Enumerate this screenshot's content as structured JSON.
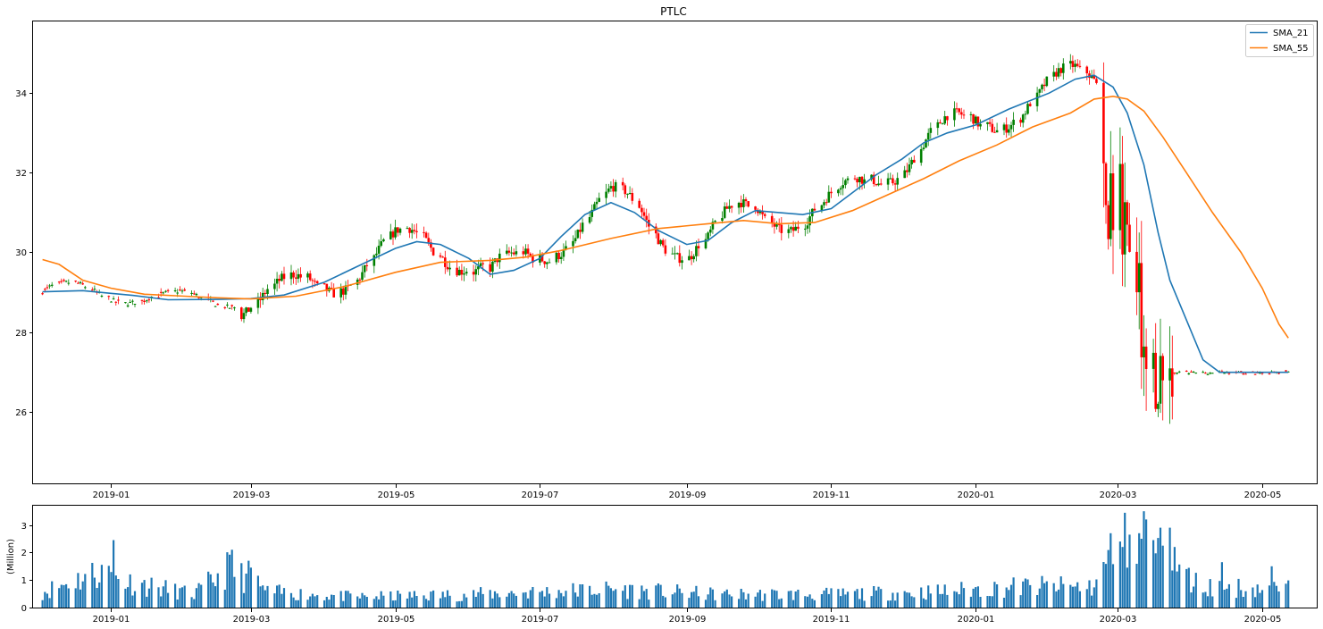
{
  "chart_data": [
    {
      "type": "candlestick",
      "title": "PTLC",
      "xlabel": "",
      "ylabel": "",
      "xlim": [
        "2018-11-29",
        "2020-05-24"
      ],
      "ylim": [
        24.2,
        35.8
      ],
      "x_ticks": [
        "2019-01",
        "2019-03",
        "2019-05",
        "2019-07",
        "2019-09",
        "2019-11",
        "2020-01",
        "2020-03",
        "2020-05"
      ],
      "y_ticks": [
        26,
        28,
        30,
        32,
        34
      ],
      "grid": false,
      "legend": "upper right",
      "up_color": "#008000",
      "down_color": "#ff0000",
      "series": [
        {
          "name": "SMA_21",
          "color": "#1f77b4",
          "points": [
            [
              "2018-12-03",
              29.01
            ],
            [
              "2018-12-20",
              29.04
            ],
            [
              "2019-01-10",
              28.92
            ],
            [
              "2019-01-25",
              28.81
            ],
            [
              "2019-02-15",
              28.82
            ],
            [
              "2019-03-01",
              28.84
            ],
            [
              "2019-03-15",
              28.93
            ],
            [
              "2019-04-01",
              29.25
            ],
            [
              "2019-04-15",
              29.65
            ],
            [
              "2019-05-01",
              30.1
            ],
            [
              "2019-05-10",
              30.27
            ],
            [
              "2019-05-20",
              30.2
            ],
            [
              "2019-06-01",
              29.85
            ],
            [
              "2019-06-10",
              29.45
            ],
            [
              "2019-06-20",
              29.55
            ],
            [
              "2019-07-01",
              29.85
            ],
            [
              "2019-07-10",
              30.4
            ],
            [
              "2019-07-20",
              30.95
            ],
            [
              "2019-07-31",
              31.25
            ],
            [
              "2019-08-10",
              31.0
            ],
            [
              "2019-08-20",
              30.55
            ],
            [
              "2019-09-01",
              30.2
            ],
            [
              "2019-09-10",
              30.3
            ],
            [
              "2019-09-20",
              30.75
            ],
            [
              "2019-09-30",
              31.05
            ],
            [
              "2019-10-10",
              31.0
            ],
            [
              "2019-10-20",
              30.95
            ],
            [
              "2019-11-01",
              31.1
            ],
            [
              "2019-11-10",
              31.5
            ],
            [
              "2019-11-20",
              31.95
            ],
            [
              "2019-12-01",
              32.35
            ],
            [
              "2019-12-10",
              32.75
            ],
            [
              "2019-12-20",
              33.0
            ],
            [
              "2020-01-01",
              33.2
            ],
            [
              "2020-01-15",
              33.6
            ],
            [
              "2020-02-01",
              34.0
            ],
            [
              "2020-02-12",
              34.35
            ],
            [
              "2020-02-20",
              34.45
            ],
            [
              "2020-02-28",
              34.15
            ],
            [
              "2020-03-05",
              33.5
            ],
            [
              "2020-03-12",
              32.2
            ],
            [
              "2020-03-18",
              30.5
            ],
            [
              "2020-03-23",
              29.3
            ],
            [
              "2020-03-30",
              28.3
            ],
            [
              "2020-04-06",
              27.3
            ],
            [
              "2020-04-13",
              26.99
            ],
            [
              "2020-05-12",
              26.99
            ]
          ]
        },
        {
          "name": "SMA_55",
          "color": "#ff7f0e",
          "points": [
            [
              "2018-12-03",
              29.82
            ],
            [
              "2018-12-10",
              29.7
            ],
            [
              "2018-12-20",
              29.3
            ],
            [
              "2019-01-01",
              29.1
            ],
            [
              "2019-01-15",
              28.95
            ],
            [
              "2019-02-01",
              28.9
            ],
            [
              "2019-02-15",
              28.86
            ],
            [
              "2019-03-01",
              28.83
            ],
            [
              "2019-03-20",
              28.9
            ],
            [
              "2019-04-10",
              29.15
            ],
            [
              "2019-05-01",
              29.5
            ],
            [
              "2019-05-20",
              29.75
            ],
            [
              "2019-06-10",
              29.8
            ],
            [
              "2019-06-25",
              29.88
            ],
            [
              "2019-07-10",
              30.05
            ],
            [
              "2019-07-31",
              30.35
            ],
            [
              "2019-08-20",
              30.6
            ],
            [
              "2019-09-10",
              30.72
            ],
            [
              "2019-09-25",
              30.8
            ],
            [
              "2019-10-10",
              30.72
            ],
            [
              "2019-10-25",
              30.75
            ],
            [
              "2019-11-10",
              31.05
            ],
            [
              "2019-11-25",
              31.45
            ],
            [
              "2019-12-10",
              31.85
            ],
            [
              "2019-12-25",
              32.3
            ],
            [
              "2020-01-10",
              32.7
            ],
            [
              "2020-01-25",
              33.15
            ],
            [
              "2020-02-10",
              33.5
            ],
            [
              "2020-02-20",
              33.85
            ],
            [
              "2020-02-28",
              33.92
            ],
            [
              "2020-03-05",
              33.85
            ],
            [
              "2020-03-12",
              33.55
            ],
            [
              "2020-03-20",
              32.9
            ],
            [
              "2020-03-30",
              32.0
            ],
            [
              "2020-04-10",
              31.0
            ],
            [
              "2020-04-22",
              30.0
            ],
            [
              "2020-05-01",
              29.1
            ],
            [
              "2020-05-08",
              28.2
            ],
            [
              "2020-05-12",
              27.85
            ]
          ]
        }
      ]
    },
    {
      "type": "bar",
      "title": "",
      "xlabel": "",
      "ylabel": "(Million)",
      "xlim": [
        "2018-11-29",
        "2020-05-24"
      ],
      "ylim": [
        0,
        3.7
      ],
      "x_ticks": [
        "2019-01",
        "2019-03",
        "2019-05",
        "2019-07",
        "2019-09",
        "2019-11",
        "2020-01",
        "2020-03",
        "2020-05"
      ],
      "y_ticks": [
        0,
        1,
        2,
        3
      ],
      "color": "#1f77b4",
      "volume_profile": [
        [
          "2018-12-03",
          0.6
        ],
        [
          "2018-12-28",
          1.4
        ],
        [
          "2019-01-07",
          1.0
        ],
        [
          "2019-02-05",
          0.5
        ],
        [
          "2019-02-20",
          1.5
        ],
        [
          "2019-03-08",
          0.6
        ],
        [
          "2019-04-15",
          0.4
        ],
        [
          "2019-06-01",
          0.5
        ],
        [
          "2019-08-01",
          0.7
        ],
        [
          "2019-09-15",
          0.5
        ],
        [
          "2019-11-01",
          0.5
        ],
        [
          "2019-12-15",
          0.6
        ],
        [
          "2020-01-20",
          0.8
        ],
        [
          "2020-02-20",
          0.8
        ],
        [
          "2020-03-01",
          2.3
        ],
        [
          "2020-03-10",
          2.8
        ],
        [
          "2020-03-20",
          1.8
        ],
        [
          "2020-04-05",
          0.8
        ],
        [
          "2020-05-12",
          0.7
        ]
      ],
      "volume_peaks": [
        [
          "2019-01-02",
          2.45
        ],
        [
          "2018-12-28",
          1.55
        ],
        [
          "2019-02-21",
          2.1
        ],
        [
          "2019-02-28",
          1.7
        ],
        [
          "2019-03-01",
          1.45
        ],
        [
          "2020-02-27",
          2.7
        ],
        [
          "2020-03-02",
          2.4
        ],
        [
          "2020-03-06",
          2.65
        ],
        [
          "2020-03-10",
          2.7
        ],
        [
          "2020-03-12",
          3.5
        ],
        [
          "2020-03-13",
          3.2
        ],
        [
          "2020-03-16",
          2.45
        ],
        [
          "2020-03-19",
          2.9
        ],
        [
          "2020-03-20",
          2.25
        ],
        [
          "2020-03-23",
          2.9
        ],
        [
          "2020-03-25",
          2.2
        ],
        [
          "2020-04-14",
          1.65
        ],
        [
          "2020-05-05",
          1.5
        ]
      ]
    }
  ]
}
